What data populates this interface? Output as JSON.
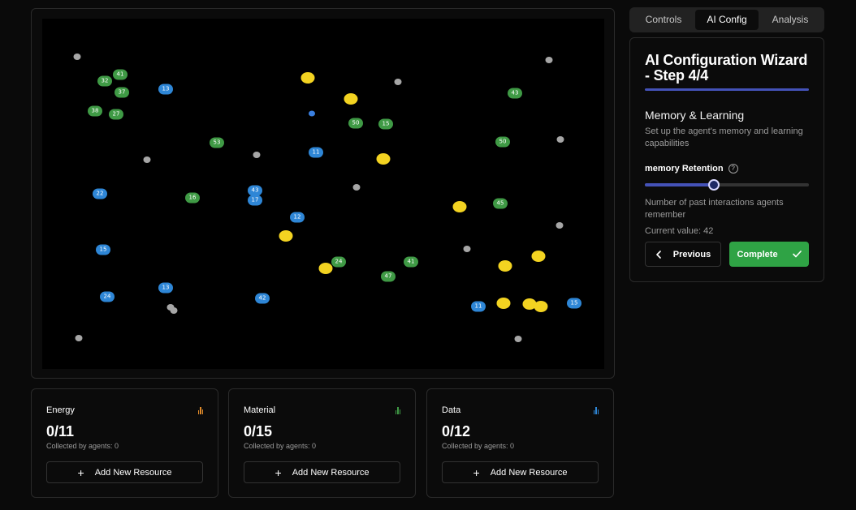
{
  "tabs": [
    {
      "label": "Controls",
      "active": false
    },
    {
      "label": "AI Config",
      "active": true
    },
    {
      "label": "Analysis",
      "active": false
    }
  ],
  "wizard": {
    "title": "AI Configuration Wizard - Step 4/4",
    "section_title": "Memory & Learning",
    "section_desc": "Set up the agent's memory and learning capabilities",
    "param_label": "memory Retention",
    "param_help_icon": "question-circle-icon",
    "slider_fraction": 0.42,
    "param_desc": "Number of past interactions agents remember",
    "current_value_text": "Current value: 42",
    "previous_label": "Previous",
    "previous_icon": "chevron-left-icon",
    "complete_label": "Complete",
    "complete_icon": "check-icon",
    "accent": "#4452b8",
    "complete_color": "#2fa345"
  },
  "resources": [
    {
      "name": "Energy",
      "count": "0/11",
      "collected": "Collected by agents: 0",
      "add_label": "Add New Resource",
      "icon": "bar-chart-icon",
      "color": "#e08a2a"
    },
    {
      "name": "Material",
      "count": "0/15",
      "collected": "Collected by agents: 0",
      "add_label": "Add New Resource",
      "icon": "bar-chart-icon",
      "color": "#3f9a45"
    },
    {
      "name": "Data",
      "count": "0/12",
      "collected": "Collected by agents: 0",
      "add_label": "Add New Resource",
      "icon": "bar-chart-icon",
      "color": "#2e86d6"
    }
  ],
  "simulation": {
    "background": "#000000",
    "green_agent_labels": [
      "32",
      "41",
      "37",
      "38",
      "27",
      "53",
      "16",
      "50",
      "15",
      "43",
      "50",
      "45",
      "24",
      "41",
      "47"
    ],
    "blue_agent_labels": [
      "13",
      "11",
      "22",
      "43",
      "17",
      "12",
      "15",
      "24",
      "13",
      "42",
      "11",
      "15"
    ],
    "colors": {
      "green_agent": "#3f9a45",
      "blue_agent": "#2e86d6",
      "energy": "#f3d321",
      "material": "#a6a6a6",
      "data": "#3a7fe0"
    }
  }
}
